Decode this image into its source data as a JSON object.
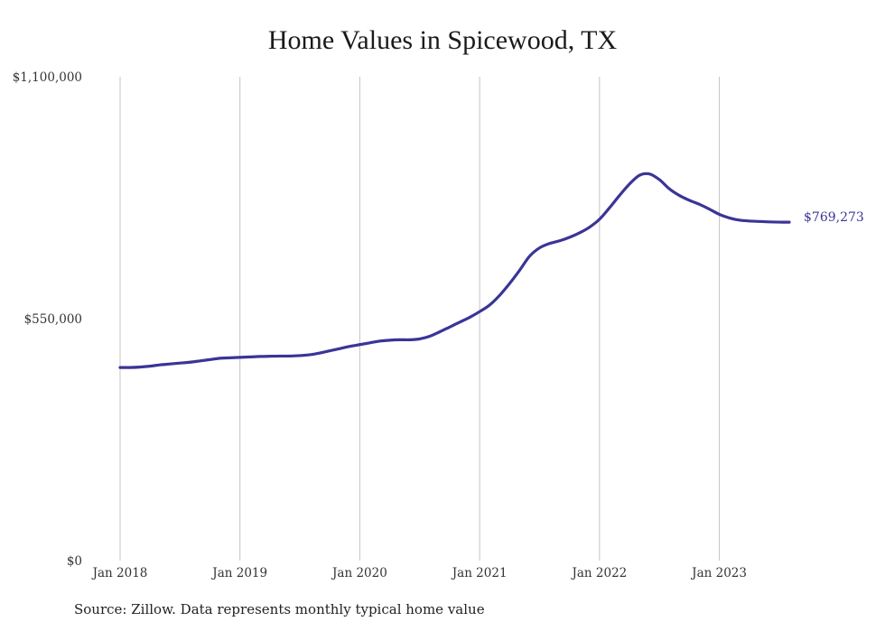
{
  "chart_data": {
    "type": "line",
    "title": "Home Values in Spicewood, TX",
    "source": "Source: Zillow. Data represents monthly typical home value",
    "color": "#3a3596",
    "grid": "vertical",
    "ylim": [
      0,
      1100000
    ],
    "y_ticks": [
      {
        "value": 0,
        "label": "$0"
      },
      {
        "value": 550000,
        "label": "$550,000"
      },
      {
        "value": 1100000,
        "label": "$1,100,000"
      }
    ],
    "x_range": [
      "2018-01",
      "2023-08"
    ],
    "x_ticks": [
      {
        "date": "2018-01",
        "label": "Jan 2018"
      },
      {
        "date": "2019-01",
        "label": "Jan 2019"
      },
      {
        "date": "2020-01",
        "label": "Jan 2020"
      },
      {
        "date": "2021-01",
        "label": "Jan 2021"
      },
      {
        "date": "2022-01",
        "label": "Jan 2022"
      },
      {
        "date": "2023-01",
        "label": "Jan 2023"
      }
    ],
    "end_label": "$769,273",
    "series": [
      {
        "x": [
          "2018-01",
          "2018-02",
          "2018-03",
          "2018-04",
          "2018-05",
          "2018-06",
          "2018-07",
          "2018-08",
          "2018-09",
          "2018-10",
          "2018-11",
          "2018-12",
          "2019-01",
          "2019-02",
          "2019-03",
          "2019-04",
          "2019-05",
          "2019-06",
          "2019-07",
          "2019-08",
          "2019-09",
          "2019-10",
          "2019-11",
          "2019-12",
          "2020-01",
          "2020-02",
          "2020-03",
          "2020-04",
          "2020-05",
          "2020-06",
          "2020-07",
          "2020-08",
          "2020-09",
          "2020-10",
          "2020-11",
          "2020-12",
          "2021-01",
          "2021-02",
          "2021-03",
          "2021-04",
          "2021-05",
          "2021-06",
          "2021-07",
          "2021-08",
          "2021-09",
          "2021-10",
          "2021-11",
          "2021-12",
          "2022-01",
          "2022-02",
          "2022-03",
          "2022-04",
          "2022-05",
          "2022-06",
          "2022-07",
          "2022-08",
          "2022-09",
          "2022-10",
          "2022-11",
          "2022-12",
          "2023-01",
          "2023-02",
          "2023-03",
          "2023-04",
          "2023-05",
          "2023-06",
          "2023-07",
          "2023-08"
        ],
        "y": [
          439000,
          439000,
          440000,
          442000,
          445000,
          447000,
          449000,
          451000,
          454000,
          457000,
          460000,
          461000,
          462000,
          463000,
          464000,
          464500,
          465000,
          465000,
          466000,
          468000,
          472000,
          477000,
          482000,
          487000,
          491000,
          495000,
          499000,
          501000,
          502000,
          502000,
          504000,
          510000,
          520000,
          531000,
          542000,
          553000,
          566000,
          581000,
          603000,
          630000,
          660000,
          692000,
          711000,
          721000,
          727000,
          735000,
          745000,
          758000,
          776000,
          802000,
          830000,
          856000,
          876000,
          879000,
          866000,
          845000,
          830000,
          819000,
          810000,
          799000,
          787000,
          779000,
          774000,
          772000,
          771000,
          770000,
          769500,
          769273
        ]
      }
    ]
  }
}
